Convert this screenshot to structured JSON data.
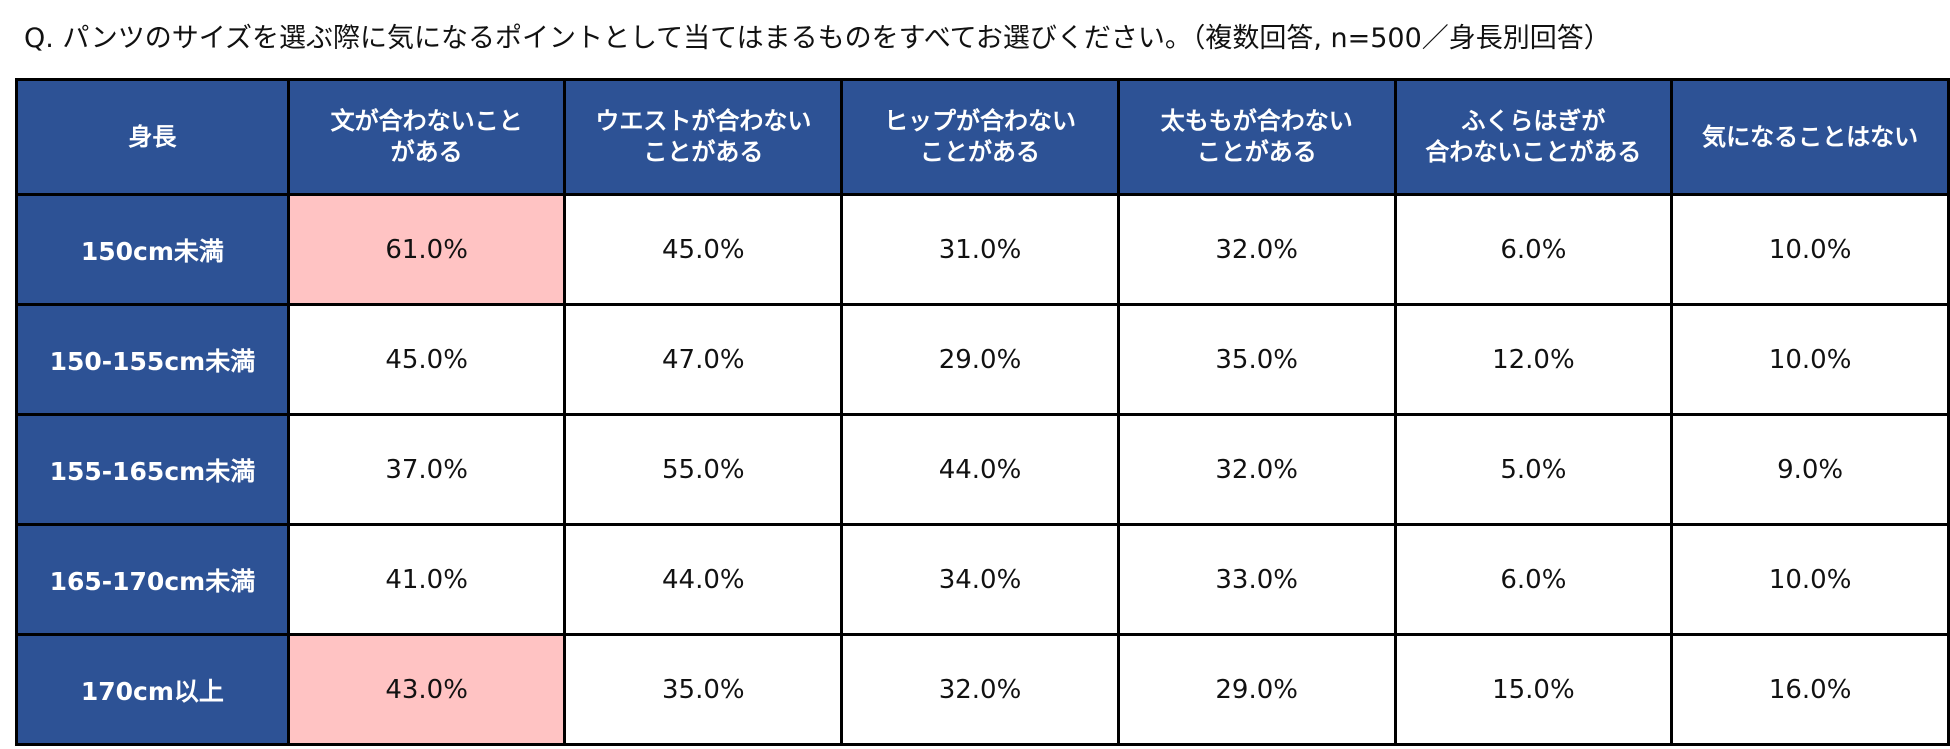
{
  "title": "Q. パンツのサイズを選ぶ際に気になるポイントとして当てはまるものをすべてお選びください。（複数回答, n=500／身長別回答）",
  "table": {
    "header": [
      [
        "身長"
      ],
      [
        "文が合わないこと",
        "がある"
      ],
      [
        "ウエストが合わない",
        "ことがある"
      ],
      [
        "ヒップが合わない",
        "ことがある"
      ],
      [
        "太ももが合わない",
        "ことがある"
      ],
      [
        "ふくらはぎが",
        "合わないことがある"
      ],
      [
        "気になることはない"
      ]
    ],
    "rows": [
      [
        "150cm未満",
        "61.0%",
        "45.0%",
        "31.0%",
        "32.0%",
        "6.0%",
        "10.0%"
      ],
      [
        "150-155cm未満",
        "45.0%",
        "47.0%",
        "29.0%",
        "35.0%",
        "12.0%",
        "10.0%"
      ],
      [
        "155-165cm未満",
        "37.0%",
        "55.0%",
        "44.0%",
        "32.0%",
        "5.0%",
        "9.0%"
      ],
      [
        "165-170cm未満",
        "41.0%",
        "44.0%",
        "34.0%",
        "33.0%",
        "6.0%",
        "10.0%"
      ],
      [
        "170cm以上",
        "43.0%",
        "35.0%",
        "32.0%",
        "29.0%",
        "15.0%",
        "16.0%"
      ]
    ],
    "header_color": "#2d5295",
    "highlight_color": "#ffc3c3",
    "highlighted_cells": [
      [
        0,
        1
      ],
      [
        4,
        1
      ]
    ]
  }
}
